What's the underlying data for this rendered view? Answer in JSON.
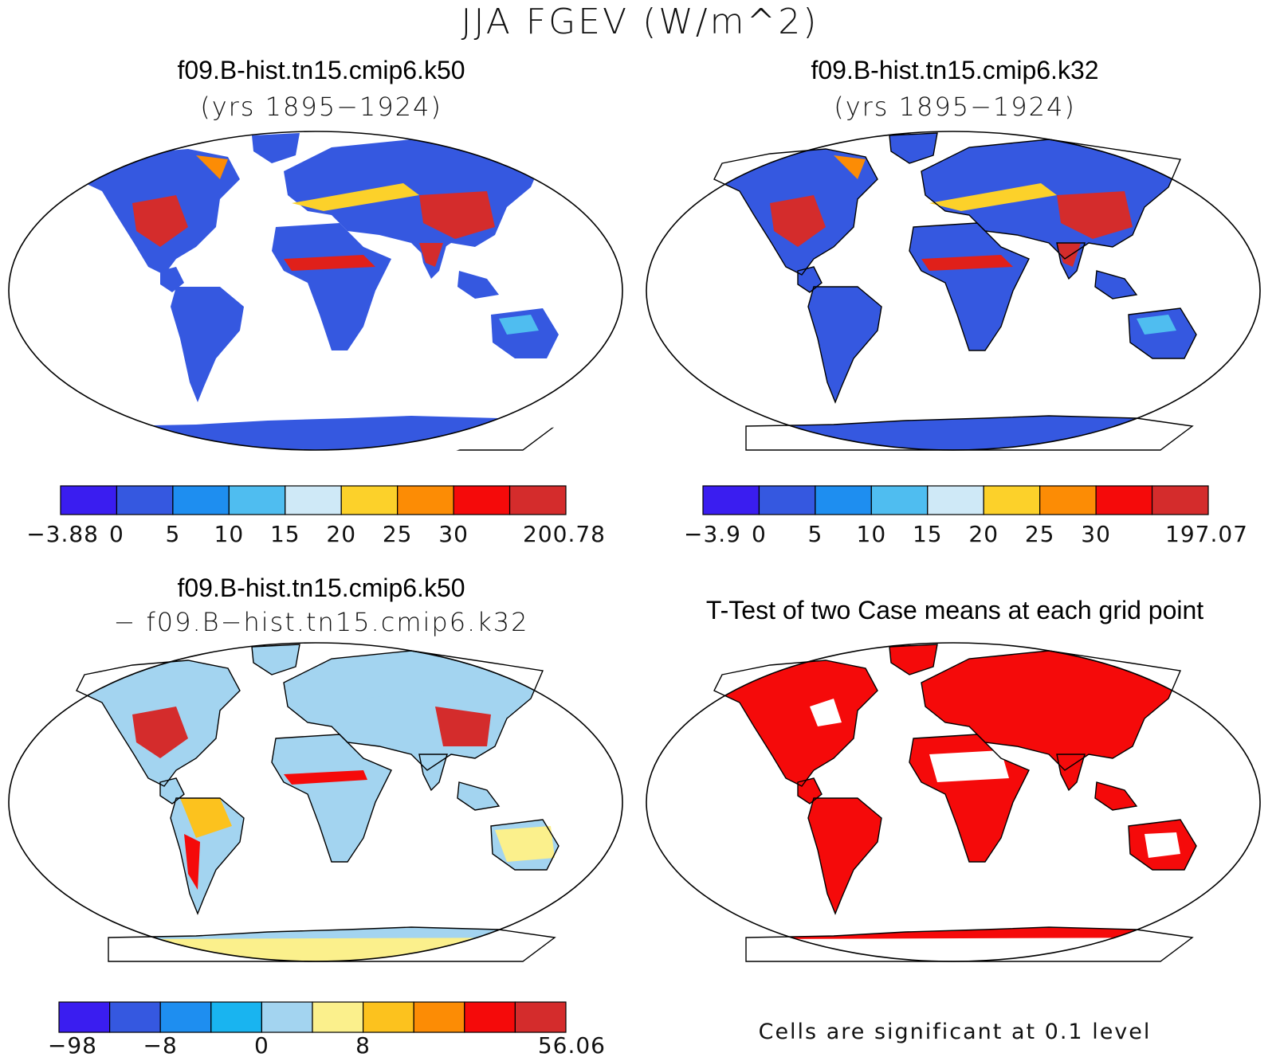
{
  "figure": {
    "title": "JJA FGEV (W/m^2)"
  },
  "panels": [
    {
      "id": "case1",
      "title": "f09.B-hist.tn15.cmip6.k50",
      "subtitle": "(yrs 1895−1924)",
      "colorbar": {
        "colors": [
          "#3a1df0",
          "#3558e0",
          "#1e8ef0",
          "#4fbdf0",
          "#cfe9f7",
          "#fcd12a",
          "#fc8c05",
          "#f50a0a",
          "#d42c2c"
        ],
        "tick_labels": [
          "−3.88",
          "0",
          "5",
          "10",
          "15",
          "20",
          "25",
          "30",
          "200.78"
        ]
      }
    },
    {
      "id": "case2",
      "title": "f09.B-hist.tn15.cmip6.k32",
      "subtitle": "(yrs 1895−1924)",
      "colorbar": {
        "colors": [
          "#3a1df0",
          "#3558e0",
          "#1e8ef0",
          "#4fbdf0",
          "#cfe9f7",
          "#fcd12a",
          "#fc8c05",
          "#f50a0a",
          "#d42c2c"
        ],
        "tick_labels": [
          "−3.9",
          "0",
          "5",
          "10",
          "15",
          "20",
          "25",
          "30",
          "197.07"
        ]
      }
    },
    {
      "id": "diff",
      "title": "f09.B-hist.tn15.cmip6.k50",
      "subtitle": "− f09.B−hist.tn15.cmip6.k32",
      "colorbar": {
        "colors": [
          "#3a1df0",
          "#3558e0",
          "#1e8ef0",
          "#19b4f0",
          "#a3d4f0",
          "#fbf08c",
          "#fcc21e",
          "#fc8c05",
          "#f50a0a",
          "#d42c2c"
        ],
        "tick_labels": [
          "−98",
          "",
          "−8",
          "",
          "0",
          "",
          "8",
          "",
          "",
          "56.06"
        ]
      }
    },
    {
      "id": "ttest",
      "title": "T-Test of two Case means at each grid point",
      "footnote": "Cells are significant at 0.1 level"
    }
  ],
  "palette": {
    "land_low": "#3558e0",
    "land_mid": "#1e8ef0",
    "land_light": "#9fd0f0",
    "land_warm": "#fcd12a",
    "land_hot": "#d42c2c",
    "antarctica": "#3a1df0",
    "significant": "#f50a0a"
  }
}
